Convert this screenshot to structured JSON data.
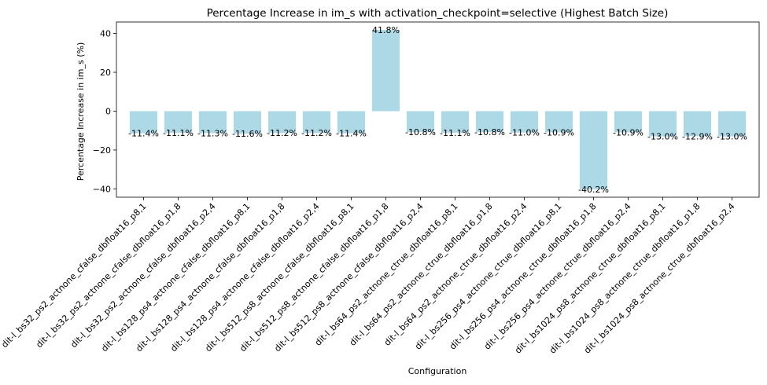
{
  "chart_data": {
    "type": "bar",
    "title": "Percentage Increase in im_s with activation_checkpoint=selective (Highest Batch Size)",
    "xlabel": "Configuration",
    "ylabel": "Percentage Increase in im_s (%)",
    "ylim": [
      -44.3,
      45.9
    ],
    "yticks": [
      -40,
      -20,
      0,
      20,
      40
    ],
    "bar_color": "#add8e6",
    "categories": [
      "dit-l_bs32_ps2_actnone_cfalse_dbfloat16_p8,1",
      "dit-l_bs32_ps2_actnone_cfalse_dbfloat16_p1,8",
      "dit-l_bs32_ps2_actnone_cfalse_dbfloat16_p2,4",
      "dit-l_bs128_ps4_actnone_cfalse_dbfloat16_p8,1",
      "dit-l_bs128_ps4_actnone_cfalse_dbfloat16_p1,8",
      "dit-l_bs128_ps4_actnone_cfalse_dbfloat16_p2,4",
      "dit-l_bs512_ps8_actnone_cfalse_dbfloat16_p8,1",
      "dit-l_bs512_ps8_actnone_cfalse_dbfloat16_p1,8",
      "dit-l_bs512_ps8_actnone_cfalse_dbfloat16_p2,4",
      "dit-l_bs64_ps2_actnone_ctrue_dbfloat16_p8,1",
      "dit-l_bs64_ps2_actnone_ctrue_dbfloat16_p1,8",
      "dit-l_bs64_ps2_actnone_ctrue_dbfloat16_p2,4",
      "dit-l_bs256_ps4_actnone_ctrue_dbfloat16_p8,1",
      "dit-l_bs256_ps4_actnone_ctrue_dbfloat16_p1,8",
      "dit-l_bs256_ps4_actnone_ctrue_dbfloat16_p2,4",
      "dit-l_bs1024_ps8_actnone_ctrue_dbfloat16_p8,1",
      "dit-l_bs1024_ps8_actnone_ctrue_dbfloat16_p1,8",
      "dit-l_bs1024_ps8_actnone_ctrue_dbfloat16_p2,4"
    ],
    "values": [
      -11.4,
      -11.1,
      -11.3,
      -11.6,
      -11.2,
      -11.2,
      -11.4,
      41.8,
      -10.8,
      -11.1,
      -10.8,
      -11.0,
      -10.9,
      -40.2,
      -10.9,
      -13.0,
      -12.9,
      -13.0
    ],
    "value_labels": [
      "-11.4%",
      "-11.1%",
      "-11.3%",
      "-11.6%",
      "-11.2%",
      "-11.2%",
      "-11.4%",
      "41.8%",
      "-10.8%",
      "-11.1%",
      "-10.8%",
      "-11.0%",
      "-10.9%",
      "-40.2%",
      "-10.9%",
      "-13.0%",
      "-12.9%",
      "-13.0%"
    ],
    "grid": false,
    "legend": "none"
  }
}
